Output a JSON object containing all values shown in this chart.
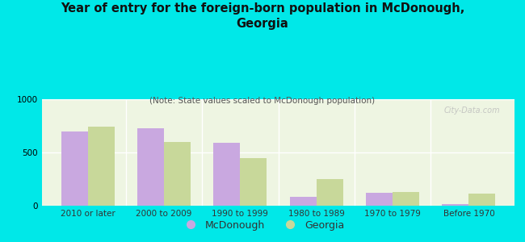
{
  "title": "Year of entry for the foreign-born population in McDonough,\nGeorgia",
  "subtitle": "(Note: State values scaled to McDonough population)",
  "categories": [
    "2010 or later",
    "2000 to 2009",
    "1990 to 1999",
    "1980 to 1989",
    "1970 to 1979",
    "Before 1970"
  ],
  "mcdonough_values": [
    700,
    730,
    590,
    80,
    120,
    15
  ],
  "georgia_values": [
    740,
    600,
    450,
    250,
    130,
    115
  ],
  "mcdonough_color": "#c9a8e0",
  "georgia_color": "#c8d89a",
  "background_color": "#00e8e8",
  "plot_bg_color": "#eef5e2",
  "watermark_text": "City-Data.com",
  "ylim": [
    0,
    1000
  ],
  "yticks": [
    0,
    500,
    1000
  ],
  "bar_width": 0.35,
  "legend_mcdonough": "McDonough",
  "legend_georgia": "Georgia",
  "title_fontsize": 10.5,
  "subtitle_fontsize": 7.5,
  "tick_fontsize": 7.5
}
